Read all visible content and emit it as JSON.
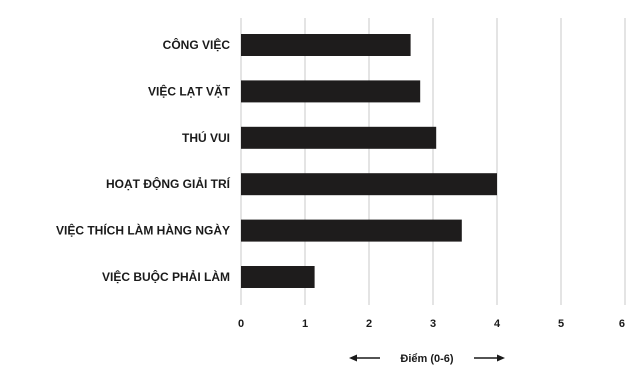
{
  "chart_data": {
    "type": "bar",
    "orientation": "horizontal",
    "categories": [
      "CÔNG VIỆC",
      "VIỆC LẠT VẶT",
      "THÚ VUI",
      "HOẠT ĐỘNG GIẢI TRÍ",
      "VIỆC THÍCH LÀM HÀNG NGÀY",
      "VIỆC BUỘC PHẢI LÀM"
    ],
    "values": [
      2.65,
      2.8,
      3.05,
      4.0,
      3.45,
      1.15
    ],
    "xlabel": "Điểm (0-6)",
    "ylabel": "",
    "title": "",
    "xlim": [
      0,
      6
    ],
    "xticks": [
      "0",
      "1",
      "2",
      "3",
      "4",
      "5",
      "6"
    ],
    "grid": "vertical",
    "bar_color": "#1e1c1c",
    "grid_color": "#c8c8c8"
  }
}
